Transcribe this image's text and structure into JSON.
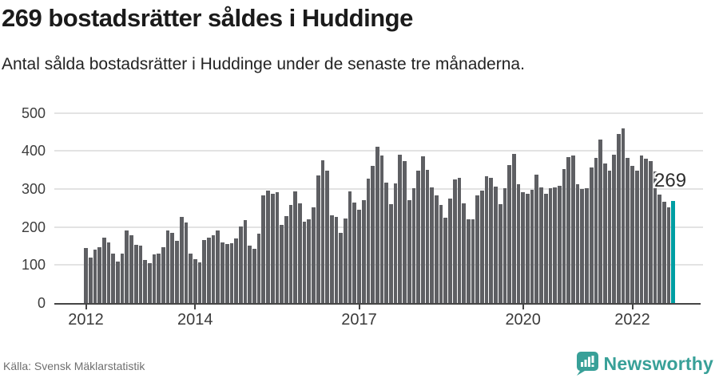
{
  "header": {
    "title": "269 bostadsrätter såldes i Huddinge",
    "subtitle": "Antal sålda bostadsrätter i Huddinge under de senaste tre månaderna."
  },
  "chart_data": {
    "type": "bar",
    "title": "269 bostadsrätter såldes i Huddinge",
    "subtitle": "Antal sålda bostadsrätter i Huddinge under de senaste tre månaderna.",
    "xlabel": "",
    "ylabel": "",
    "ylim": [
      0,
      500
    ],
    "yticks": [
      0,
      100,
      200,
      300,
      400,
      500
    ],
    "year_tick_labels": [
      "2012",
      "2014",
      "2017",
      "2020",
      "2022"
    ],
    "start": "2012-01",
    "frequency": "monthly",
    "grid": true,
    "legend_position": "none",
    "bar_color": "#5e5f63",
    "highlight_color": "#009ea3",
    "series_by_year": [
      {
        "year": 2012,
        "values": [
          145,
          120,
          140,
          146,
          173,
          159,
          131,
          110,
          131,
          191,
          178,
          153
        ]
      },
      {
        "year": 2013,
        "values": [
          150,
          113,
          104,
          127,
          131,
          147,
          190,
          184,
          164,
          227,
          211,
          130
        ]
      },
      {
        "year": 2014,
        "values": [
          115,
          107,
          166,
          173,
          178,
          190,
          159,
          155,
          157,
          170,
          201,
          219
        ]
      },
      {
        "year": 2015,
        "values": [
          152,
          143,
          183,
          284,
          296,
          288,
          292,
          206,
          228,
          258,
          293,
          262
        ]
      },
      {
        "year": 2016,
        "values": [
          214,
          221,
          251,
          335,
          376,
          349,
          230,
          226,
          185,
          223,
          293,
          265
        ]
      },
      {
        "year": 2017,
        "values": [
          246,
          271,
          328,
          361,
          411,
          388,
          317,
          261,
          314,
          391,
          373,
          271
        ]
      },
      {
        "year": 2018,
        "values": [
          301,
          348,
          385,
          350,
          305,
          283,
          257,
          225,
          275,
          326,
          329,
          262
        ]
      },
      {
        "year": 2019,
        "values": [
          221,
          220,
          283,
          296,
          334,
          330,
          307,
          260,
          301,
          362,
          392,
          313
        ]
      },
      {
        "year": 2020,
        "values": [
          292,
          287,
          297,
          338,
          304,
          288,
          301,
          305,
          308,
          352,
          384,
          388
        ]
      },
      {
        "year": 2021,
        "values": [
          312,
          300,
          301,
          356,
          382,
          430,
          367,
          348,
          389,
          445,
          460,
          382
        ]
      },
      {
        "year": 2022,
        "values": [
          361,
          349,
          388,
          380,
          374,
          346,
          286,
          266,
          251,
          269
        ]
      }
    ],
    "highlight": {
      "position": "last",
      "value": 269,
      "label": "269"
    }
  },
  "footer": {
    "source": "Källa: Svensk Mäklarstatistik",
    "brand": "Newsworthy",
    "brand_color": "#38a098"
  }
}
